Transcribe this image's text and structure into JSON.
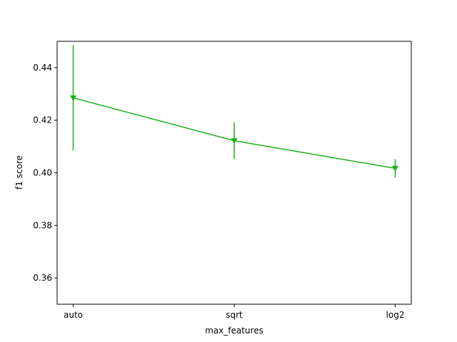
{
  "chart_data": {
    "type": "line",
    "title": "",
    "xlabel": "max_features",
    "ylabel": "f1 score",
    "categories": [
      "auto",
      "sqrt",
      "log2"
    ],
    "ylim": [
      0.35,
      0.45
    ],
    "yticks": [
      "0.36",
      "0.38",
      "0.40",
      "0.42",
      "0.44"
    ],
    "grid": false,
    "series": [
      {
        "values": [
          0.4285,
          0.4122,
          0.4017
        ],
        "error": [
          0.02,
          0.007,
          0.0035
        ],
        "marker": "triangle-down",
        "color": "#1aaf1a"
      }
    ]
  }
}
